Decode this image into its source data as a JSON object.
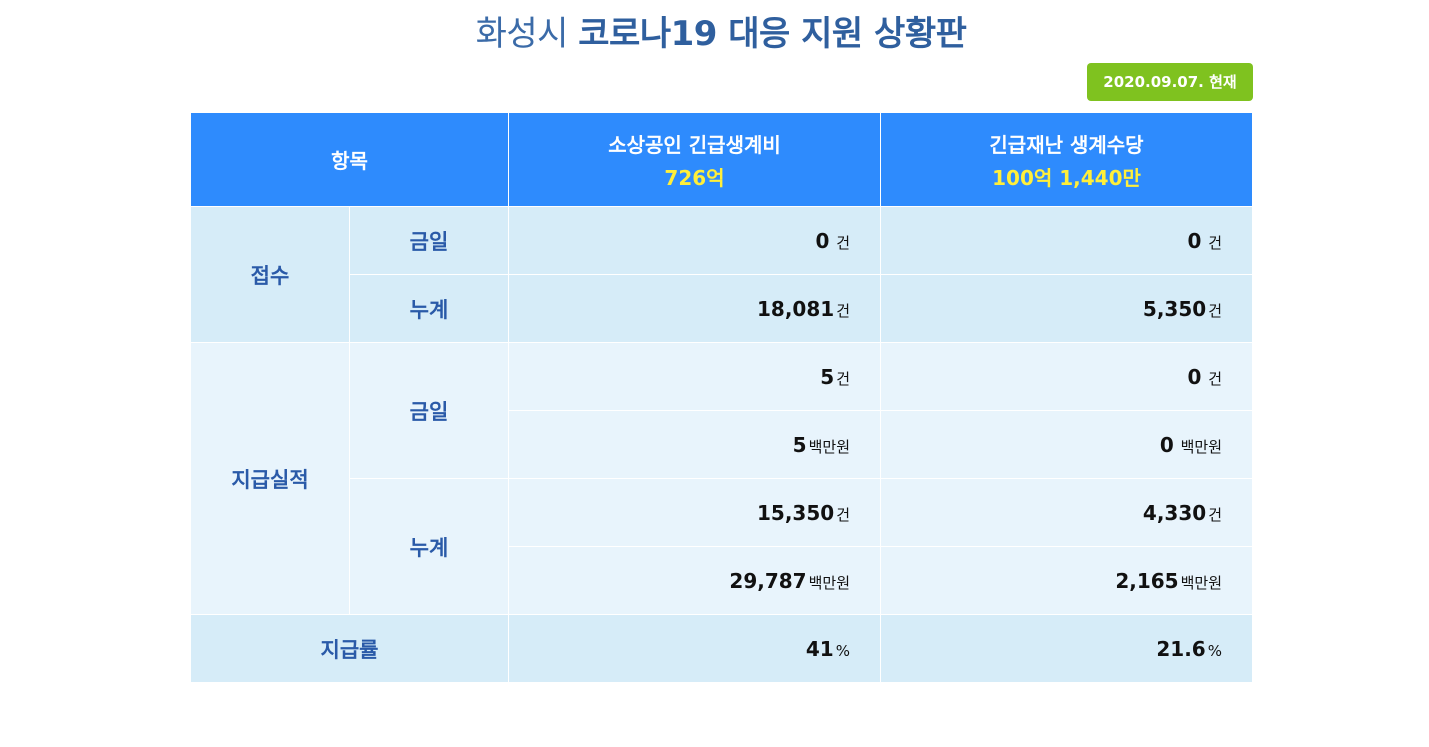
{
  "header": {
    "title_prefix": "화성시",
    "title_main": "코로나19 대응 지원 상황판",
    "date_badge": "2020.09.07. 현재"
  },
  "table": {
    "col_item": "항목",
    "col1_title": "소상공인 긴급생계비",
    "col1_amount": "726억",
    "col2_title": "긴급재난 생계수당",
    "col2_amount": "100억 1,440만",
    "receipt": {
      "label": "접수",
      "today_label": "금일",
      "total_label": "누계",
      "today": {
        "c1": "0",
        "c1_unit": " 건",
        "c2": "0",
        "c2_unit": " 건"
      },
      "total": {
        "c1": "18,081",
        "c1_unit": "건",
        "c2": "5,350",
        "c2_unit": "건"
      }
    },
    "payment": {
      "label": "지급실적",
      "today_label": "금일",
      "total_label": "누계",
      "today_count": {
        "c1": "5",
        "c1_unit": "건",
        "c2": "0",
        "c2_unit": " 건"
      },
      "today_amount": {
        "c1": "5",
        "c1_unit": "백만원",
        "c2": "0",
        "c2_unit": " 백만원"
      },
      "total_count": {
        "c1": "15,350",
        "c1_unit": "건",
        "c2": "4,330",
        "c2_unit": "건"
      },
      "total_amount": {
        "c1": "29,787",
        "c1_unit": "백만원",
        "c2": "2,165",
        "c2_unit": "백만원"
      }
    },
    "rate": {
      "label": "지급률",
      "c1": "41",
      "c1_unit": "%",
      "c2": "21.6",
      "c2_unit": "%"
    }
  }
}
